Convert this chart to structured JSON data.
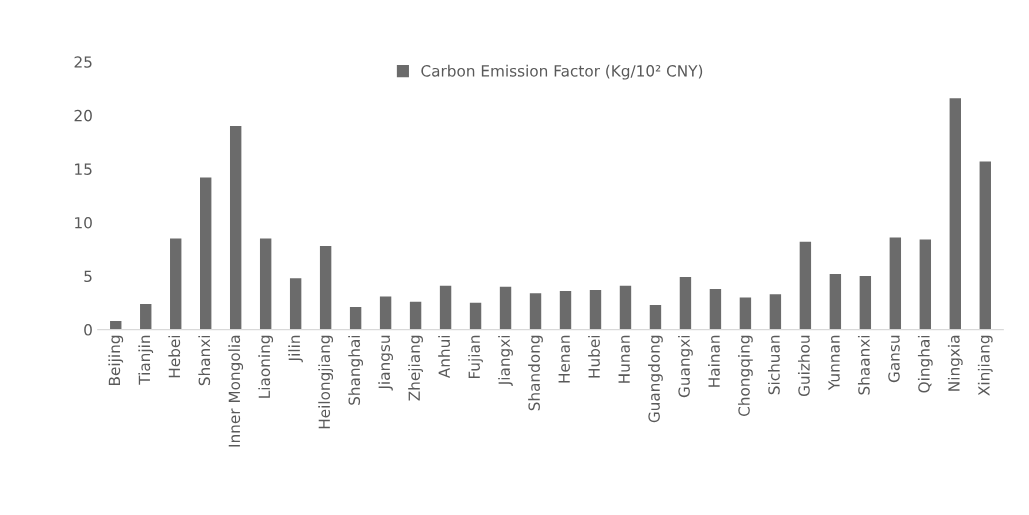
{
  "chart_data": {
    "type": "bar",
    "categories": [
      "Beijing",
      "Tianjin",
      "Hebei",
      "Shanxi",
      "Inner Mongolia",
      "Liaoning",
      "Jilin",
      "Heilongjiang",
      "Shanghai",
      "Jiangsu",
      "Zhejiang",
      "Anhui",
      "Fujian",
      "Jiangxi",
      "Shandong",
      "Henan",
      "Hubei",
      "Hunan",
      "Guangdong",
      "Guangxi",
      "Hainan",
      "Chongqing",
      "Sichuan",
      "Guizhou",
      "Yunnan",
      "Shaanxi",
      "Gansu",
      "Qinghai",
      "Ningxia",
      "Xinjiang"
    ],
    "series": [
      {
        "name": "Carbon Emission Factor (Kg/10² CNY)",
        "color": "#6b6b6b",
        "values": [
          0.8,
          2.4,
          8.5,
          14.2,
          19.0,
          8.5,
          4.8,
          7.8,
          2.1,
          3.1,
          2.6,
          4.1,
          2.5,
          4.0,
          3.4,
          3.6,
          3.7,
          4.1,
          2.3,
          4.9,
          3.8,
          3.0,
          3.3,
          8.2,
          5.2,
          5.0,
          8.6,
          8.4,
          21.6,
          15.7
        ]
      }
    ],
    "ylim": [
      0,
      25
    ],
    "yticks": [
      0,
      5,
      10,
      15,
      20,
      25
    ],
    "grid": false,
    "legend": "top"
  }
}
